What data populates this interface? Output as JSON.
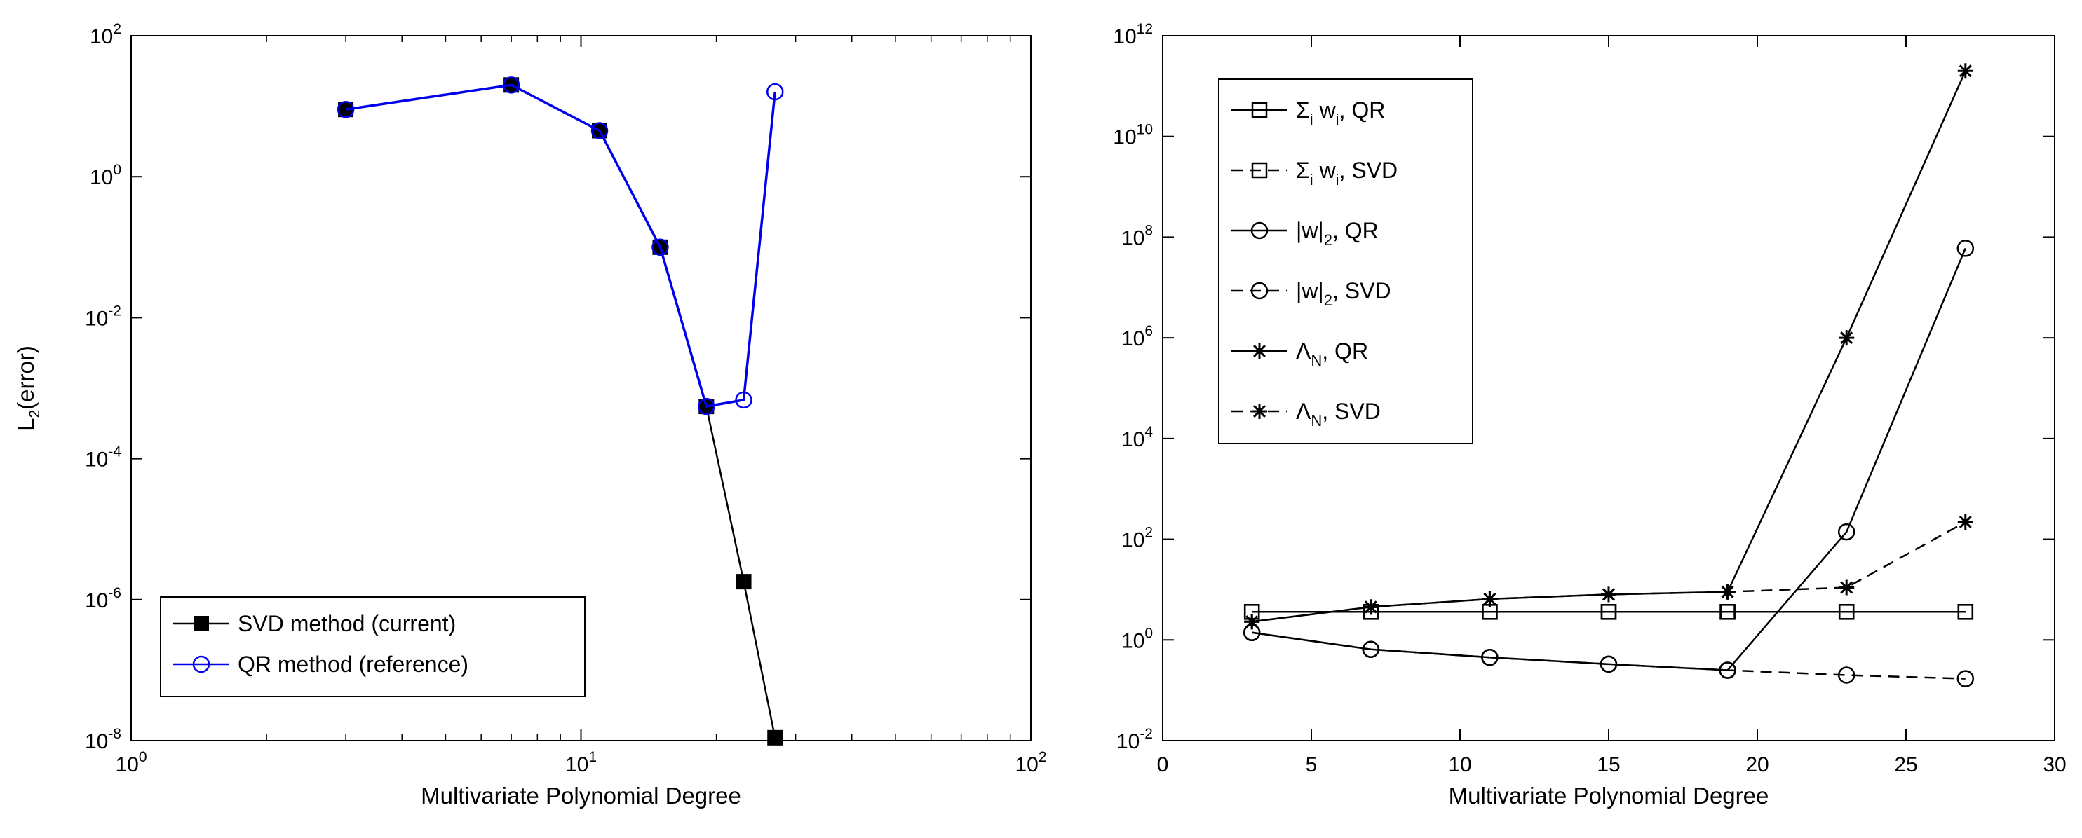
{
  "chart_data": [
    {
      "type": "line",
      "xscale": "log",
      "yscale": "log",
      "xlabel": "Multivariate Polynomial Degree",
      "ylabel": {
        "base": "L",
        "sub": "2",
        "rest": "(error)"
      },
      "xlim": [
        1,
        100
      ],
      "ylim": [
        1e-08,
        100
      ],
      "xticks": [
        {
          "value": 1,
          "base": "10",
          "exp": "0"
        },
        {
          "value": 10,
          "base": "10",
          "exp": "1"
        },
        {
          "value": 100,
          "base": "10",
          "exp": "2"
        }
      ],
      "yticks": [
        {
          "value": 1e-08,
          "base": "10",
          "exp": "-8"
        },
        {
          "value": 1e-06,
          "base": "10",
          "exp": "-6"
        },
        {
          "value": 0.0001,
          "base": "10",
          "exp": "-4"
        },
        {
          "value": 0.01,
          "base": "10",
          "exp": "-2"
        },
        {
          "value": 1,
          "base": "10",
          "exp": "0"
        },
        {
          "value": 100,
          "base": "10",
          "exp": "2"
        }
      ],
      "legend_location": "bottom-left",
      "series": [
        {
          "name": "SVD method (current)",
          "color": "#000000",
          "dash": "solid",
          "marker": "filled-square",
          "x": [
            3,
            7,
            11,
            15,
            19,
            23,
            27
          ],
          "y": [
            9,
            20,
            4.5,
            0.1,
            0.00055,
            1.8e-06,
            1.1e-08
          ]
        },
        {
          "name": "QR method (reference)",
          "color": "#0000ee",
          "dash": "solid",
          "marker": "open-circle",
          "x": [
            3,
            7,
            11,
            15,
            19,
            23,
            27
          ],
          "y": [
            9,
            20,
            4.5,
            0.1,
            0.00055,
            0.00068,
            16
          ]
        }
      ]
    },
    {
      "type": "line",
      "xscale": "linear",
      "yscale": "log",
      "xlabel": "Multivariate Polynomial Degree",
      "ylabel": "",
      "xlim": [
        0,
        30
      ],
      "ylim": [
        0.01,
        1000000000000.0
      ],
      "xticks": [
        {
          "value": 0,
          "label": "0"
        },
        {
          "value": 5,
          "label": "5"
        },
        {
          "value": 10,
          "label": "10"
        },
        {
          "value": 15,
          "label": "15"
        },
        {
          "value": 20,
          "label": "20"
        },
        {
          "value": 25,
          "label": "25"
        },
        {
          "value": 30,
          "label": "30"
        }
      ],
      "yticks": [
        {
          "value": 0.01,
          "base": "10",
          "exp": "-2"
        },
        {
          "value": 1,
          "base": "10",
          "exp": "0"
        },
        {
          "value": 100,
          "base": "10",
          "exp": "2"
        },
        {
          "value": 10000.0,
          "base": "10",
          "exp": "4"
        },
        {
          "value": 1000000.0,
          "base": "10",
          "exp": "6"
        },
        {
          "value": 100000000.0,
          "base": "10",
          "exp": "8"
        },
        {
          "value": 10000000000.0,
          "base": "10",
          "exp": "10"
        },
        {
          "value": 1000000000000.0,
          "base": "10",
          "exp": "12"
        }
      ],
      "legend_location": "top-left",
      "series": [
        {
          "label": [
            {
              "t": "Σ"
            },
            {
              "t": "i",
              "sub": true
            },
            {
              "t": " w"
            },
            {
              "t": "i",
              "sub": true
            },
            {
              "t": ", QR"
            }
          ],
          "color": "#000000",
          "dash": "solid",
          "marker": "open-square",
          "x": [
            3,
            7,
            11,
            15,
            19,
            23,
            27
          ],
          "y": [
            3.6,
            3.6,
            3.6,
            3.6,
            3.6,
            3.6,
            3.6
          ]
        },
        {
          "label": [
            {
              "t": "Σ"
            },
            {
              "t": "i",
              "sub": true
            },
            {
              "t": " w"
            },
            {
              "t": "i",
              "sub": true
            },
            {
              "t": ", SVD"
            }
          ],
          "color": "#000000",
          "dash": "dashed",
          "marker": "open-square",
          "x": [
            3,
            7,
            11,
            15,
            19,
            23,
            27
          ],
          "y": [
            3.6,
            3.6,
            3.6,
            3.6,
            3.6,
            3.6,
            3.6
          ]
        },
        {
          "label": [
            {
              "t": "|w|"
            },
            {
              "t": "2",
              "sub": true
            },
            {
              "t": ", QR"
            }
          ],
          "color": "#000000",
          "dash": "solid",
          "marker": "open-circle",
          "x": [
            3,
            7,
            11,
            15,
            19,
            23,
            27
          ],
          "y": [
            1.4,
            0.65,
            0.45,
            0.33,
            0.25,
            140,
            60000000
          ]
        },
        {
          "label": [
            {
              "t": "|w|"
            },
            {
              "t": "2",
              "sub": true
            },
            {
              "t": ", SVD"
            }
          ],
          "color": "#000000",
          "dash": "dashed",
          "marker": "open-circle",
          "x": [
            3,
            7,
            11,
            15,
            19,
            23,
            27
          ],
          "y": [
            1.4,
            0.65,
            0.45,
            0.33,
            0.25,
            0.2,
            0.17
          ]
        },
        {
          "label": [
            {
              "t": "Λ"
            },
            {
              "t": "N",
              "sub": true
            },
            {
              "t": ", QR"
            }
          ],
          "color": "#000000",
          "dash": "solid",
          "marker": "star",
          "x": [
            3,
            7,
            11,
            15,
            19,
            23,
            27
          ],
          "y": [
            2.3,
            4.5,
            6.5,
            8,
            9,
            1000000,
            200000000000
          ]
        },
        {
          "label": [
            {
              "t": "Λ"
            },
            {
              "t": "N",
              "sub": true
            },
            {
              "t": ", SVD"
            }
          ],
          "color": "#000000",
          "dash": "dashed",
          "marker": "star",
          "x": [
            3,
            7,
            11,
            15,
            19,
            23,
            27
          ],
          "y": [
            2.3,
            4.5,
            6.5,
            8,
            9,
            11,
            220
          ]
        }
      ]
    }
  ]
}
